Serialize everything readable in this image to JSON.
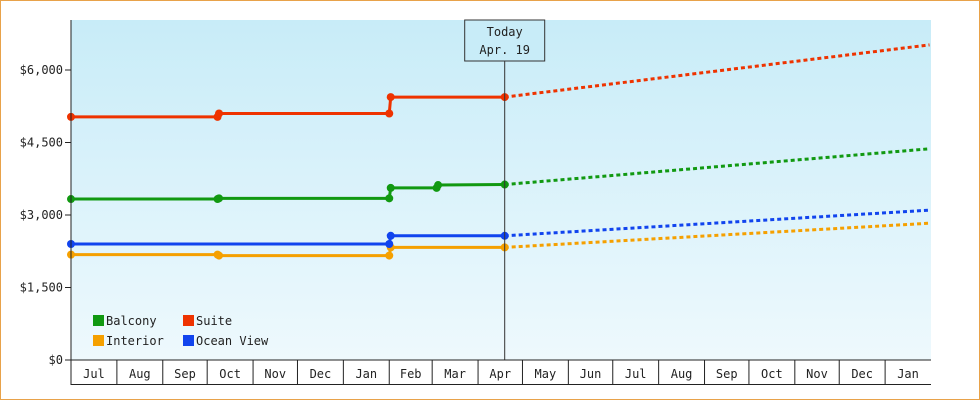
{
  "chart_data": {
    "type": "line",
    "y_axis": {
      "ticks": [
        "$0",
        "$1,500",
        "$3,000",
        "$4,500",
        "$6,000"
      ],
      "tick_values": [
        0,
        1500,
        3000,
        4500,
        6000
      ],
      "range": [
        0,
        6000
      ]
    },
    "x_axis": {
      "range": [
        "2015-07-01",
        "2017-01-31"
      ],
      "months": [
        {
          "label": "Jul",
          "start": "2015-07-01"
        },
        {
          "label": "Aug",
          "start": "2015-08-01"
        },
        {
          "label": "Sep",
          "start": "2015-09-01"
        },
        {
          "label": "Oct",
          "start": "2015-10-01"
        },
        {
          "label": "Nov",
          "start": "2015-11-01"
        },
        {
          "label": "Dec",
          "start": "2015-12-01"
        },
        {
          "label": "Jan",
          "start": "2016-01-01"
        },
        {
          "label": "Feb",
          "start": "2016-02-01"
        },
        {
          "label": "Mar",
          "start": "2016-03-01"
        },
        {
          "label": "Apr",
          "start": "2016-04-01"
        },
        {
          "label": "May",
          "start": "2016-05-01"
        },
        {
          "label": "Jun",
          "start": "2016-06-01"
        },
        {
          "label": "Jul",
          "start": "2016-07-01"
        },
        {
          "label": "Aug",
          "start": "2016-08-01"
        },
        {
          "label": "Sep",
          "start": "2016-09-01"
        },
        {
          "label": "Oct",
          "start": "2016-10-01"
        },
        {
          "label": "Nov",
          "start": "2016-11-01"
        },
        {
          "label": "Dec",
          "start": "2016-12-01"
        },
        {
          "label": "Jan",
          "start": "2017-01-01"
        }
      ]
    },
    "today": {
      "line1": "Today",
      "line2": "Apr. 19",
      "date": "2016-04-19"
    },
    "grid": false,
    "legend": {
      "placement": "bottom-left"
    },
    "series": [
      {
        "name": "Balcony",
        "color": "#119911",
        "points": [
          [
            "2015-07-01",
            3330
          ],
          [
            "2015-10-08",
            3330
          ],
          [
            "2015-10-09",
            3345
          ],
          [
            "2016-02-01",
            3345
          ],
          [
            "2016-02-02",
            3560
          ],
          [
            "2016-03-04",
            3560
          ],
          [
            "2016-03-05",
            3620
          ],
          [
            "2016-04-19",
            3630
          ]
        ],
        "forecast": [
          [
            "2016-04-19",
            3630
          ],
          [
            "2017-01-31",
            4370
          ]
        ]
      },
      {
        "name": "Suite",
        "color": "#ee3300",
        "points": [
          [
            "2015-07-01",
            5030
          ],
          [
            "2015-10-08",
            5030
          ],
          [
            "2015-10-09",
            5100
          ],
          [
            "2016-02-01",
            5100
          ],
          [
            "2016-02-02",
            5440
          ],
          [
            "2016-04-19",
            5440
          ]
        ],
        "forecast": [
          [
            "2016-04-19",
            5440
          ],
          [
            "2017-01-31",
            6520
          ]
        ]
      },
      {
        "name": "Interior",
        "color": "#f5a000",
        "points": [
          [
            "2015-07-01",
            2180
          ],
          [
            "2015-10-08",
            2180
          ],
          [
            "2015-10-09",
            2160
          ],
          [
            "2016-02-01",
            2160
          ],
          [
            "2016-02-02",
            2330
          ],
          [
            "2016-04-19",
            2330
          ]
        ],
        "forecast": [
          [
            "2016-04-19",
            2330
          ],
          [
            "2017-01-31",
            2830
          ]
        ]
      },
      {
        "name": "Ocean View",
        "color": "#1144ee",
        "points": [
          [
            "2015-07-01",
            2400
          ],
          [
            "2015-10-08",
            2400
          ],
          [
            "2016-02-01",
            2400
          ],
          [
            "2016-02-02",
            2570
          ],
          [
            "2016-04-19",
            2570
          ]
        ],
        "forecast": [
          [
            "2016-04-19",
            2570
          ],
          [
            "2017-01-31",
            3100
          ]
        ]
      }
    ]
  }
}
